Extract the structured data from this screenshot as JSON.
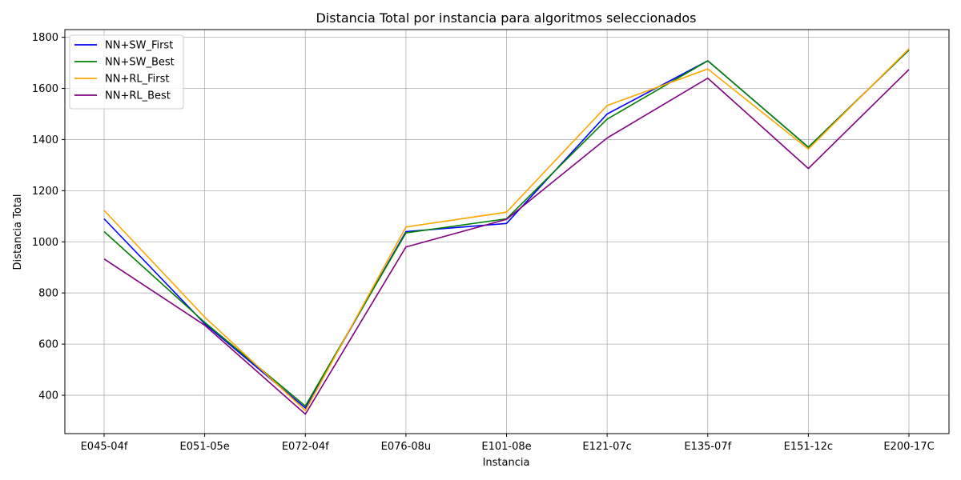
{
  "chart_data": {
    "type": "line",
    "title": "Distancia Total por instancia para algoritmos seleccionados",
    "xlabel": "Instancia",
    "ylabel": "Distancia Total",
    "categories": [
      "E045-04f",
      "E051-05e",
      "E072-04f",
      "E076-08u",
      "E101-08e",
      "E121-07c",
      "E135-07f",
      "E151-12c",
      "E200-17C"
    ],
    "ylim": [
      250,
      1830
    ],
    "yticks": [
      400,
      600,
      800,
      1000,
      1200,
      1400,
      1600,
      1800
    ],
    "grid": true,
    "legend_position": "top-left",
    "series": [
      {
        "name": "NN+SW_First",
        "color": "#0000ff",
        "values": [
          1090,
          680,
          350,
          1040,
          1072,
          1500,
          1708,
          1370,
          1750
        ]
      },
      {
        "name": "NN+SW_Best",
        "color": "#008000",
        "values": [
          1040,
          685,
          358,
          1035,
          1090,
          1480,
          1708,
          1370,
          1750
        ]
      },
      {
        "name": "NN+RL_First",
        "color": "#ffa500",
        "values": [
          1123,
          706,
          340,
          1058,
          1116,
          1533,
          1676,
          1363,
          1755
        ]
      },
      {
        "name": "NN+RL_Best",
        "color": "#800080",
        "values": [
          933,
          674,
          326,
          980,
          1088,
          1406,
          1640,
          1287,
          1674
        ]
      }
    ]
  }
}
